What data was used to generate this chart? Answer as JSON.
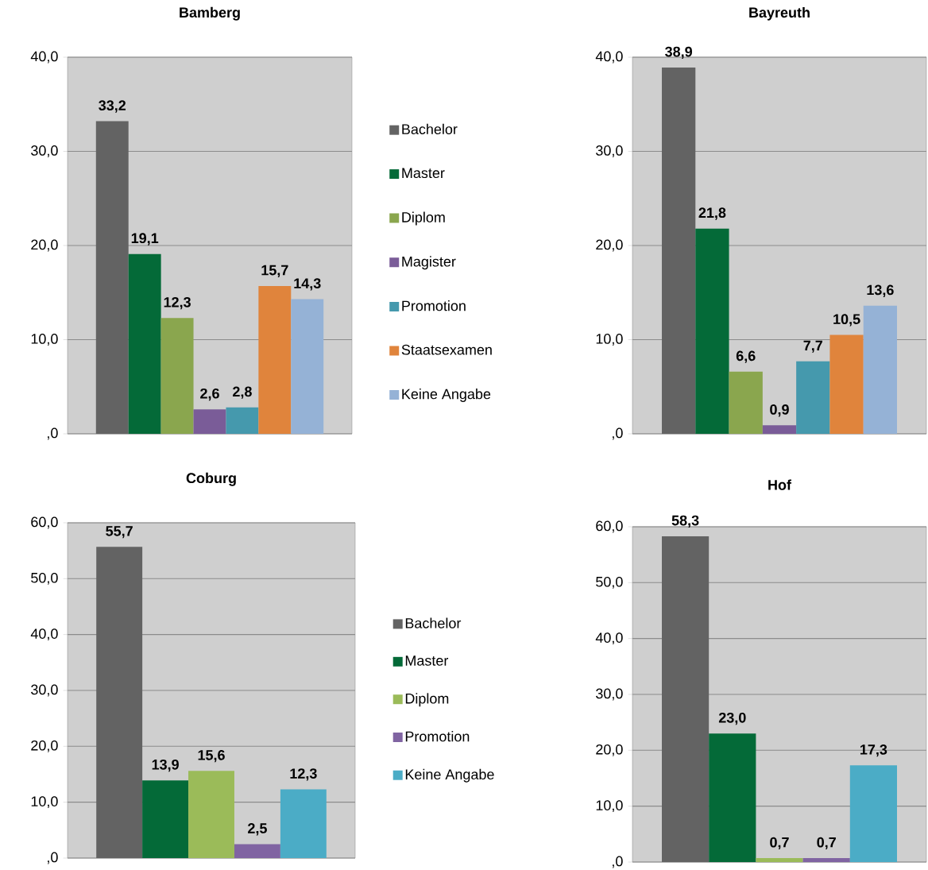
{
  "chart_data": [
    {
      "type": "bar",
      "title": "Bamberg",
      "categories": [
        null
      ],
      "ylim": [
        0,
        40
      ],
      "yticks": [
        {
          "value": 0,
          "label": ",0"
        },
        {
          "value": 10,
          "label": "10,0"
        },
        {
          "value": 20,
          "label": "20,0"
        },
        {
          "value": 30,
          "label": "30,0"
        },
        {
          "value": 40,
          "label": "40,0"
        }
      ],
      "grid": "y",
      "legend": "right",
      "series": [
        {
          "name": "Bachelor",
          "color": "#636363",
          "values": [
            33.2
          ],
          "value_labels": [
            "33,2"
          ]
        },
        {
          "name": "Master",
          "color": "#046a38",
          "values": [
            19.1
          ],
          "value_labels": [
            "19,1"
          ]
        },
        {
          "name": "Diplom",
          "color": "#8aa64e",
          "values": [
            12.3
          ],
          "value_labels": [
            "12,3"
          ]
        },
        {
          "name": "Magister",
          "color": "#7a5c98",
          "values": [
            2.6
          ],
          "value_labels": [
            "2,6"
          ]
        },
        {
          "name": "Promotion",
          "color": "#4599ad",
          "values": [
            2.8
          ],
          "value_labels": [
            "2,8"
          ]
        },
        {
          "name": "Staatsexamen",
          "color": "#e0843c",
          "values": [
            15.7
          ],
          "value_labels": [
            "15,7"
          ]
        },
        {
          "name": "Keine Angabe",
          "color": "#95b2d6",
          "values": [
            14.3
          ],
          "value_labels": [
            "14,3"
          ]
        }
      ]
    },
    {
      "type": "bar",
      "title": "Bayreuth",
      "categories": [
        null
      ],
      "ylim": [
        0,
        40
      ],
      "yticks": [
        {
          "value": 0,
          "label": ",0"
        },
        {
          "value": 10,
          "label": "10,0"
        },
        {
          "value": 20,
          "label": "20,0"
        },
        {
          "value": 30,
          "label": "30,0"
        },
        {
          "value": 40,
          "label": "40,0"
        }
      ],
      "grid": "y",
      "series": [
        {
          "color": "#636363",
          "values": [
            38.9
          ],
          "value_labels": [
            "38,9"
          ]
        },
        {
          "color": "#046a38",
          "values": [
            21.8
          ],
          "value_labels": [
            "21,8"
          ]
        },
        {
          "color": "#8aa64e",
          "values": [
            6.6
          ],
          "value_labels": [
            "6,6"
          ]
        },
        {
          "color": "#7a5c98",
          "values": [
            0.9
          ],
          "value_labels": [
            "0,9"
          ]
        },
        {
          "color": "#4599ad",
          "values": [
            7.7
          ],
          "value_labels": [
            "7,7"
          ]
        },
        {
          "color": "#e0843c",
          "values": [
            10.5
          ],
          "value_labels": [
            "10,5"
          ]
        },
        {
          "color": "#95b2d6",
          "values": [
            13.6
          ],
          "value_labels": [
            "13,6"
          ]
        }
      ]
    },
    {
      "type": "bar",
      "title": "Coburg",
      "categories": [
        null
      ],
      "ylim": [
        0,
        60
      ],
      "yticks": [
        {
          "value": 0,
          "label": ",0"
        },
        {
          "value": 10,
          "label": "10,0"
        },
        {
          "value": 20,
          "label": "20,0"
        },
        {
          "value": 30,
          "label": "30,0"
        },
        {
          "value": 40,
          "label": "40,0"
        },
        {
          "value": 50,
          "label": "50,0"
        },
        {
          "value": 60,
          "label": "60,0"
        }
      ],
      "grid": "y",
      "legend": "right",
      "series": [
        {
          "name": "Bachelor",
          "color": "#636363",
          "values": [
            55.7
          ],
          "value_labels": [
            "55,7"
          ]
        },
        {
          "name": "Master",
          "color": "#046a38",
          "values": [
            13.9
          ],
          "value_labels": [
            "13,9"
          ]
        },
        {
          "name": "Diplom",
          "color": "#9bbb59",
          "values": [
            15.6
          ],
          "value_labels": [
            "15,6"
          ]
        },
        {
          "name": "Promotion",
          "color": "#8064a2",
          "values": [
            2.5
          ],
          "value_labels": [
            "2,5"
          ]
        },
        {
          "name": "Keine Angabe",
          "color": "#4bacc6",
          "values": [
            12.3
          ],
          "value_labels": [
            "12,3"
          ]
        }
      ]
    },
    {
      "type": "bar",
      "title": "Hof",
      "categories": [
        null
      ],
      "ylim": [
        0,
        60
      ],
      "yticks": [
        {
          "value": 0,
          "label": ",0"
        },
        {
          "value": 10,
          "label": "10,0"
        },
        {
          "value": 20,
          "label": "20,0"
        },
        {
          "value": 30,
          "label": "30,0"
        },
        {
          "value": 40,
          "label": "40,0"
        },
        {
          "value": 50,
          "label": "50,0"
        },
        {
          "value": 60,
          "label": "60,0"
        }
      ],
      "grid": "y",
      "series": [
        {
          "color": "#636363",
          "values": [
            58.3
          ],
          "value_labels": [
            "58,3"
          ]
        },
        {
          "color": "#046a38",
          "values": [
            23.0
          ],
          "value_labels": [
            "23,0"
          ]
        },
        {
          "color": "#9bbb59",
          "values": [
            0.7
          ],
          "value_labels": [
            "0,7"
          ]
        },
        {
          "color": "#8064a2",
          "values": [
            0.7
          ],
          "value_labels": [
            "0,7"
          ]
        },
        {
          "color": "#4bacc6",
          "values": [
            17.3
          ],
          "value_labels": [
            "17,3"
          ]
        }
      ]
    }
  ]
}
